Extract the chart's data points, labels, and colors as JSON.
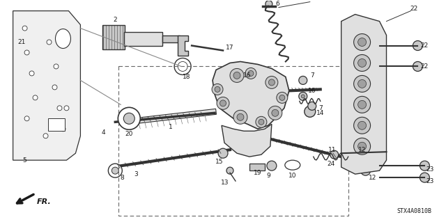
{
  "background_color": "#ffffff",
  "image_code": "STX4A0810B",
  "fig_width": 6.4,
  "fig_height": 3.19,
  "dpi": 100,
  "diagram_color": "#1a1a1a",
  "label_fontsize": 6.5,
  "fr_label": "FR.",
  "parts_outline_color": "#333333",
  "parts_fill_light": "#e0e0e0",
  "parts_fill_mid": "#c8c8c8",
  "parts_fill_dark": "#a0a0a0"
}
